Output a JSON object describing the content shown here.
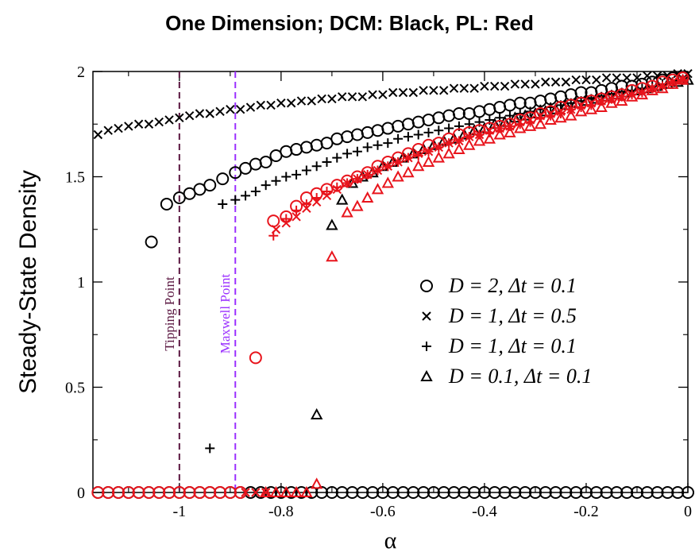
{
  "chart_data": {
    "type": "scatter",
    "title": "One Dimension; DCM: Black, PL: Red",
    "xlabel": "α",
    "ylabel": "Steady-State Density",
    "xlim": [
      -1.17,
      0
    ],
    "ylim": [
      0,
      2
    ],
    "xticks": [
      -1,
      -0.8,
      -0.6,
      -0.4,
      -0.2,
      0
    ],
    "yticks": [
      0,
      0.5,
      1,
      1.5,
      2
    ],
    "xtick_labels": [
      "-1",
      "-0.8",
      "-0.6",
      "-0.4",
      "-0.2",
      "0"
    ],
    "ytick_labels": [
      "0",
      "0.5",
      "1",
      "1.5",
      "2"
    ],
    "grid": false,
    "legend_position": "center-right",
    "legend": [
      {
        "marker": "circle",
        "label": "D = 2, Δt = 0.1"
      },
      {
        "marker": "x",
        "label": "D = 1, Δt = 0.5"
      },
      {
        "marker": "plus",
        "label": "D = 1, Δt = 0.1"
      },
      {
        "marker": "triangle",
        "label": "D = 0.1, Δt = 0.1"
      }
    ],
    "colors": {
      "DCM": "#000000",
      "PL": "#e8141c",
      "tipping": "#5a1640",
      "maxwell": "#9b30ff"
    },
    "annotations": [
      {
        "label": "Tipping Point",
        "x": -1.0,
        "color": "tipping"
      },
      {
        "label": "Maxwell Point",
        "x": -0.89,
        "color": "maxwell"
      }
    ],
    "series": [
      {
        "color": "DCM",
        "marker": "circle",
        "x": [
          -1.16,
          -1.14,
          -1.12,
          -1.1,
          -1.08,
          -1.06,
          -1.04,
          -1.02,
          -1.0,
          -0.98,
          -0.96,
          -0.94,
          -0.92,
          -0.9,
          -0.88,
          -0.86,
          -0.84,
          -0.82,
          -0.8,
          -0.78,
          -0.76,
          -0.74,
          -0.72,
          -0.7,
          -0.68,
          -0.66,
          -0.64,
          -0.62,
          -0.6,
          -0.58,
          -0.56,
          -0.54,
          -0.52,
          -0.5,
          -0.48,
          -0.46,
          -0.44,
          -0.42,
          -0.4,
          -0.38,
          -0.36,
          -0.34,
          -0.32,
          -0.3,
          -0.28,
          -0.26,
          -0.24,
          -0.22,
          -0.2,
          -0.18,
          -0.16,
          -0.14,
          -0.12,
          -0.1,
          -0.08,
          -0.06,
          -0.04,
          -0.02,
          0.0
        ],
        "y": [
          0,
          0,
          0,
          0,
          0,
          0,
          0,
          0,
          0,
          0,
          0,
          0,
          0,
          0,
          0,
          0,
          0,
          0,
          0,
          0,
          0,
          0,
          0,
          0,
          0,
          0,
          0,
          0,
          0,
          0,
          0,
          0,
          0,
          0,
          0,
          0,
          0,
          0,
          0,
          0,
          0,
          0,
          0,
          0,
          0,
          0,
          0,
          0,
          0,
          0,
          0,
          0,
          0,
          0,
          0,
          0,
          0,
          0,
          0
        ]
      },
      {
        "color": "DCM",
        "marker": "circle",
        "x": [
          -1.055,
          -1.025,
          -1.0,
          -0.98,
          -0.96,
          -0.94,
          -0.915,
          -0.89,
          -0.87,
          -0.85,
          -0.83,
          -0.81,
          -0.79,
          -0.77,
          -0.75,
          -0.73,
          -0.71,
          -0.69,
          -0.67,
          -0.65,
          -0.63,
          -0.61,
          -0.59,
          -0.57,
          -0.55,
          -0.53,
          -0.51,
          -0.49,
          -0.47,
          -0.45,
          -0.43,
          -0.41,
          -0.39,
          -0.37,
          -0.35,
          -0.33,
          -0.31,
          -0.29,
          -0.27,
          -0.25,
          -0.23,
          -0.21,
          -0.19,
          -0.17,
          -0.15,
          -0.13,
          -0.11,
          -0.09,
          -0.07,
          -0.05,
          -0.03,
          -0.01
        ],
        "y": [
          1.19,
          1.37,
          1.4,
          1.42,
          1.44,
          1.46,
          1.49,
          1.52,
          1.54,
          1.56,
          1.57,
          1.6,
          1.62,
          1.63,
          1.64,
          1.65,
          1.66,
          1.68,
          1.69,
          1.7,
          1.71,
          1.72,
          1.73,
          1.74,
          1.75,
          1.76,
          1.77,
          1.78,
          1.79,
          1.8,
          1.8,
          1.81,
          1.82,
          1.83,
          1.84,
          1.85,
          1.85,
          1.86,
          1.87,
          1.88,
          1.89,
          1.9,
          1.9,
          1.91,
          1.92,
          1.93,
          1.93,
          1.94,
          1.95,
          1.96,
          1.97,
          1.97
        ]
      },
      {
        "color": "DCM",
        "marker": "x",
        "x": [
          -1.16,
          -1.14,
          -1.12,
          -1.1,
          -1.08,
          -1.06,
          -1.04,
          -1.02,
          -1.0,
          -0.98,
          -0.96,
          -0.94,
          -0.92,
          -0.9,
          -0.88,
          -0.86,
          -0.84,
          -0.82,
          -0.8,
          -0.78,
          -0.76,
          -0.74,
          -0.72,
          -0.7,
          -0.68,
          -0.66,
          -0.64,
          -0.62,
          -0.6,
          -0.58,
          -0.56,
          -0.54,
          -0.52,
          -0.5,
          -0.48,
          -0.46,
          -0.44,
          -0.42,
          -0.4,
          -0.38,
          -0.36,
          -0.34,
          -0.32,
          -0.3,
          -0.28,
          -0.26,
          -0.24,
          -0.22,
          -0.2,
          -0.18,
          -0.16,
          -0.14,
          -0.12,
          -0.1,
          -0.08,
          -0.06,
          -0.04,
          -0.02,
          0.0
        ],
        "y": [
          1.7,
          1.72,
          1.73,
          1.74,
          1.75,
          1.75,
          1.76,
          1.77,
          1.78,
          1.79,
          1.8,
          1.8,
          1.81,
          1.82,
          1.82,
          1.83,
          1.84,
          1.84,
          1.85,
          1.85,
          1.86,
          1.86,
          1.87,
          1.87,
          1.88,
          1.88,
          1.88,
          1.89,
          1.89,
          1.9,
          1.9,
          1.9,
          1.91,
          1.91,
          1.91,
          1.92,
          1.92,
          1.92,
          1.93,
          1.93,
          1.93,
          1.94,
          1.94,
          1.94,
          1.95,
          1.95,
          1.95,
          1.96,
          1.96,
          1.96,
          1.97,
          1.97,
          1.97,
          1.97,
          1.98,
          1.98,
          1.98,
          1.99,
          1.99
        ]
      },
      {
        "color": "DCM",
        "marker": "plus",
        "x": [
          -0.94,
          -0.915,
          -0.89,
          -0.87,
          -0.85,
          -0.83,
          -0.81,
          -0.79,
          -0.77,
          -0.75,
          -0.73,
          -0.71,
          -0.69,
          -0.67,
          -0.65,
          -0.63,
          -0.61,
          -0.59,
          -0.57,
          -0.55,
          -0.53,
          -0.51,
          -0.49,
          -0.47,
          -0.45,
          -0.43,
          -0.41,
          -0.39,
          -0.37,
          -0.35,
          -0.33,
          -0.31,
          -0.29,
          -0.27,
          -0.25,
          -0.23,
          -0.21,
          -0.19,
          -0.17,
          -0.15,
          -0.13,
          -0.11,
          -0.09,
          -0.07,
          -0.05,
          -0.03,
          -0.01
        ],
        "y": [
          0.21,
          1.37,
          1.39,
          1.41,
          1.43,
          1.46,
          1.48,
          1.5,
          1.51,
          1.53,
          1.55,
          1.57,
          1.59,
          1.61,
          1.62,
          1.64,
          1.65,
          1.66,
          1.68,
          1.69,
          1.7,
          1.71,
          1.72,
          1.73,
          1.74,
          1.75,
          1.76,
          1.77,
          1.78,
          1.79,
          1.8,
          1.81,
          1.82,
          1.83,
          1.84,
          1.85,
          1.86,
          1.87,
          1.88,
          1.89,
          1.9,
          1.91,
          1.92,
          1.93,
          1.94,
          1.95,
          1.96
        ]
      },
      {
        "color": "DCM",
        "marker": "triangle",
        "x": [
          -0.73,
          -0.7,
          -0.68,
          -0.66,
          -0.64,
          -0.62,
          -0.6,
          -0.58,
          -0.56,
          -0.54,
          -0.52,
          -0.5,
          -0.48,
          -0.46,
          -0.44,
          -0.42,
          -0.4,
          -0.38,
          -0.36,
          -0.34,
          -0.32,
          -0.3,
          -0.28,
          -0.26,
          -0.24,
          -0.22,
          -0.2,
          -0.18,
          -0.16,
          -0.14,
          -0.12,
          -0.1,
          -0.08,
          -0.06,
          -0.04,
          -0.02,
          0.0
        ],
        "y": [
          0.37,
          1.27,
          1.39,
          1.47,
          1.5,
          1.52,
          1.55,
          1.57,
          1.59,
          1.61,
          1.63,
          1.65,
          1.67,
          1.68,
          1.7,
          1.72,
          1.73,
          1.75,
          1.76,
          1.78,
          1.79,
          1.8,
          1.81,
          1.82,
          1.84,
          1.85,
          1.86,
          1.87,
          1.88,
          1.89,
          1.9,
          1.91,
          1.92,
          1.93,
          1.94,
          1.95,
          1.96
        ]
      },
      {
        "color": "PL",
        "marker": "circle",
        "x": [
          -1.16,
          -1.14,
          -1.12,
          -1.1,
          -1.08,
          -1.06,
          -1.04,
          -1.02,
          -1.0,
          -0.98,
          -0.96,
          -0.94,
          -0.92,
          -0.9,
          -0.88,
          -0.85,
          -0.815,
          -0.79,
          -0.77,
          -0.75,
          -0.73,
          -0.71,
          -0.69,
          -0.67,
          -0.65,
          -0.63,
          -0.61,
          -0.59,
          -0.57,
          -0.55,
          -0.53,
          -0.51,
          -0.49,
          -0.47,
          -0.45,
          -0.43,
          -0.41,
          -0.39,
          -0.37,
          -0.35,
          -0.33,
          -0.31,
          -0.29,
          -0.27,
          -0.25,
          -0.23,
          -0.21,
          -0.19,
          -0.17,
          -0.15,
          -0.13,
          -0.11,
          -0.09,
          -0.07,
          -0.05,
          -0.03,
          -0.01
        ],
        "y": [
          0,
          0,
          0,
          0,
          0,
          0,
          0,
          0,
          0,
          0,
          0,
          0,
          0,
          0,
          0,
          0.64,
          1.29,
          1.31,
          1.36,
          1.4,
          1.42,
          1.44,
          1.46,
          1.48,
          1.5,
          1.52,
          1.55,
          1.57,
          1.59,
          1.61,
          1.63,
          1.65,
          1.66,
          1.68,
          1.7,
          1.71,
          1.72,
          1.73,
          1.74,
          1.75,
          1.77,
          1.78,
          1.8,
          1.81,
          1.83,
          1.84,
          1.85,
          1.86,
          1.87,
          1.88,
          1.89,
          1.91,
          1.92,
          1.93,
          1.95,
          1.96,
          1.97
        ]
      },
      {
        "color": "PL",
        "marker": "x",
        "x": [
          -0.87,
          -0.85,
          -0.83,
          -0.81,
          -0.79,
          -0.77,
          -0.75,
          -0.73,
          -0.71,
          -0.69,
          -0.67,
          -0.65,
          -0.63,
          -0.61,
          -0.59,
          -0.57,
          -0.55,
          -0.53,
          -0.51,
          -0.49,
          -0.47,
          -0.45,
          -0.43,
          -0.41,
          -0.39,
          -0.37,
          -0.35,
          -0.33,
          -0.31,
          -0.29,
          -0.27,
          -0.25,
          -0.23,
          -0.21,
          -0.19,
          -0.17,
          -0.15,
          -0.13,
          -0.11,
          -0.09,
          -0.07,
          -0.05,
          -0.03,
          -0.01
        ],
        "y": [
          0,
          0,
          0,
          1.25,
          1.28,
          1.31,
          1.35,
          1.38,
          1.41,
          1.44,
          1.47,
          1.49,
          1.51,
          1.53,
          1.55,
          1.57,
          1.59,
          1.61,
          1.62,
          1.64,
          1.66,
          1.67,
          1.69,
          1.7,
          1.72,
          1.73,
          1.74,
          1.76,
          1.77,
          1.79,
          1.8,
          1.81,
          1.82,
          1.84,
          1.85,
          1.86,
          1.87,
          1.88,
          1.89,
          1.9,
          1.92,
          1.93,
          1.95,
          1.96
        ]
      },
      {
        "color": "PL",
        "marker": "plus",
        "x": [
          -0.815,
          -0.79,
          -0.77,
          -0.75,
          -0.73,
          -0.71,
          -0.69,
          -0.67,
          -0.65,
          -0.63,
          -0.61,
          -0.59,
          -0.57,
          -0.55,
          -0.53,
          -0.51,
          -0.49,
          -0.47,
          -0.45,
          -0.43,
          -0.41,
          -0.39,
          -0.37,
          -0.35,
          -0.33,
          -0.31,
          -0.29,
          -0.27,
          -0.25,
          -0.23,
          -0.21,
          -0.19,
          -0.17,
          -0.15,
          -0.13,
          -0.11,
          -0.09,
          -0.07,
          -0.05,
          -0.03,
          -0.01
        ],
        "y": [
          1.22,
          1.3,
          1.34,
          1.37,
          1.4,
          1.43,
          1.45,
          1.47,
          1.49,
          1.51,
          1.53,
          1.55,
          1.57,
          1.59,
          1.6,
          1.62,
          1.64,
          1.66,
          1.67,
          1.69,
          1.7,
          1.71,
          1.73,
          1.74,
          1.75,
          1.76,
          1.78,
          1.79,
          1.8,
          1.82,
          1.83,
          1.84,
          1.86,
          1.87,
          1.88,
          1.89,
          1.9,
          1.92,
          1.93,
          1.95,
          1.96
        ]
      },
      {
        "color": "PL",
        "marker": "triangle",
        "x": [
          -0.83,
          -0.81,
          -0.79,
          -0.77,
          -0.75,
          -0.73,
          -0.7,
          -0.67,
          -0.65,
          -0.63,
          -0.61,
          -0.59,
          -0.57,
          -0.55,
          -0.53,
          -0.51,
          -0.49,
          -0.47,
          -0.45,
          -0.43,
          -0.41,
          -0.39,
          -0.37,
          -0.35,
          -0.33,
          -0.31,
          -0.29,
          -0.27,
          -0.25,
          -0.23,
          -0.21,
          -0.19,
          -0.17,
          -0.15,
          -0.13,
          -0.11,
          -0.09,
          -0.07,
          -0.05,
          -0.03,
          -0.01
        ],
        "y": [
          0,
          0,
          0,
          0,
          0,
          0.04,
          1.12,
          1.33,
          1.36,
          1.4,
          1.44,
          1.47,
          1.5,
          1.52,
          1.55,
          1.57,
          1.59,
          1.61,
          1.63,
          1.65,
          1.67,
          1.68,
          1.7,
          1.71,
          1.73,
          1.74,
          1.75,
          1.77,
          1.78,
          1.79,
          1.81,
          1.82,
          1.83,
          1.85,
          1.86,
          1.88,
          1.89,
          1.91,
          1.92,
          1.94,
          1.96
        ]
      }
    ]
  }
}
